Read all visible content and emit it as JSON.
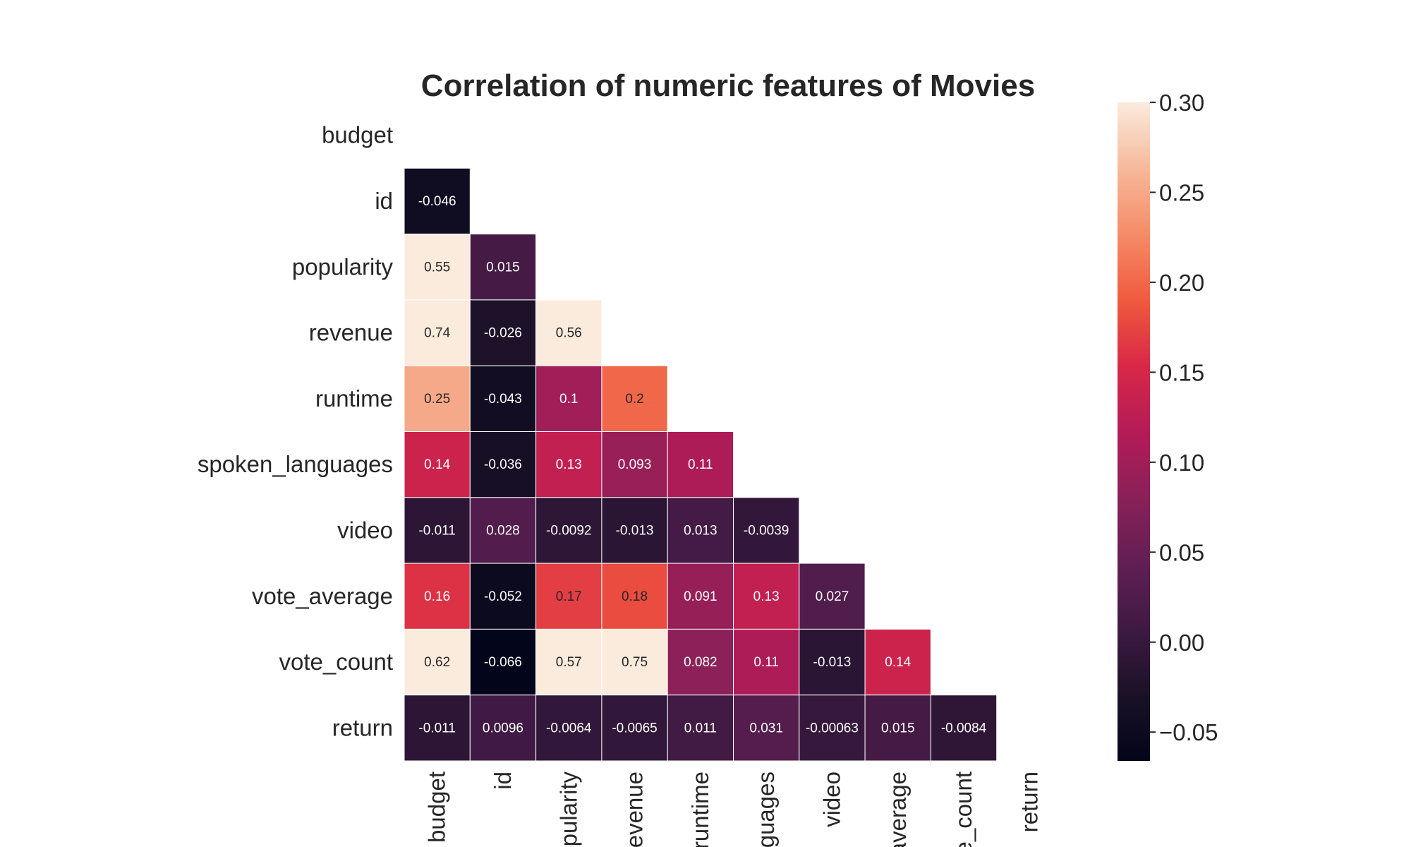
{
  "chart_data": {
    "type": "heatmap",
    "title": "Correlation of numeric features of Movies",
    "row_labels": [
      "budget",
      "id",
      "popularity",
      "revenue",
      "runtime",
      "spoken_languages",
      "video",
      "vote_average",
      "vote_count",
      "return"
    ],
    "column_labels": [
      "budget",
      "id",
      "popularity",
      "revenue",
      "runtime",
      "languages",
      "video",
      "average",
      "e_count",
      "return"
    ],
    "mask": "upper-triangle-including-diagonal",
    "values": [
      [
        null,
        null,
        null,
        null,
        null,
        null,
        null,
        null,
        null,
        null
      ],
      [
        -0.046,
        null,
        null,
        null,
        null,
        null,
        null,
        null,
        null,
        null
      ],
      [
        0.55,
        0.015,
        null,
        null,
        null,
        null,
        null,
        null,
        null,
        null
      ],
      [
        0.74,
        -0.026,
        0.56,
        null,
        null,
        null,
        null,
        null,
        null,
        null
      ],
      [
        0.25,
        -0.043,
        0.1,
        0.2,
        null,
        null,
        null,
        null,
        null,
        null
      ],
      [
        0.14,
        -0.036,
        0.13,
        0.093,
        0.11,
        null,
        null,
        null,
        null,
        null
      ],
      [
        -0.011,
        0.028,
        -0.0092,
        -0.013,
        0.013,
        -0.0039,
        null,
        null,
        null,
        null
      ],
      [
        0.16,
        -0.052,
        0.17,
        0.18,
        0.091,
        0.13,
        0.027,
        null,
        null,
        null
      ],
      [
        0.62,
        -0.066,
        0.57,
        0.75,
        0.082,
        0.11,
        -0.013,
        0.14,
        null,
        null
      ],
      [
        -0.011,
        0.0096,
        -0.0064,
        -0.0065,
        0.011,
        0.031,
        -0.00063,
        0.015,
        -0.0084,
        null
      ]
    ],
    "value_labels": [
      [],
      [
        "-0.046"
      ],
      [
        "0.55",
        "0.015"
      ],
      [
        "0.74",
        "-0.026",
        "0.56"
      ],
      [
        "0.25",
        "-0.043",
        "0.1",
        "0.2"
      ],
      [
        "0.14",
        "-0.036",
        "0.13",
        "0.093",
        "0.11"
      ],
      [
        "-0.011",
        "0.028",
        "-0.0092",
        "-0.013",
        "0.013",
        "-0.0039"
      ],
      [
        "0.16",
        "-0.052",
        "0.17",
        "0.18",
        "0.091",
        "0.13",
        "0.027"
      ],
      [
        "0.62",
        "-0.066",
        "0.57",
        "0.75",
        "0.082",
        "0.11",
        "-0.013",
        "0.14"
      ],
      [
        "-0.011",
        "0.0096",
        "-0.0064",
        "-0.0065",
        "0.011",
        "0.031",
        "-0.00063",
        "0.015",
        "-0.0084"
      ]
    ],
    "colorbar": {
      "vmin": -0.066,
      "vmax": 0.3,
      "ticks": [
        -0.05,
        0.0,
        0.05,
        0.1,
        0.15,
        0.2,
        0.25,
        0.3
      ],
      "tick_labels": [
        "−0.05",
        "0.00",
        "0.05",
        "0.10",
        "0.15",
        "0.20",
        "0.25",
        "0.30"
      ],
      "colormap": "rocket"
    },
    "grid": false
  }
}
